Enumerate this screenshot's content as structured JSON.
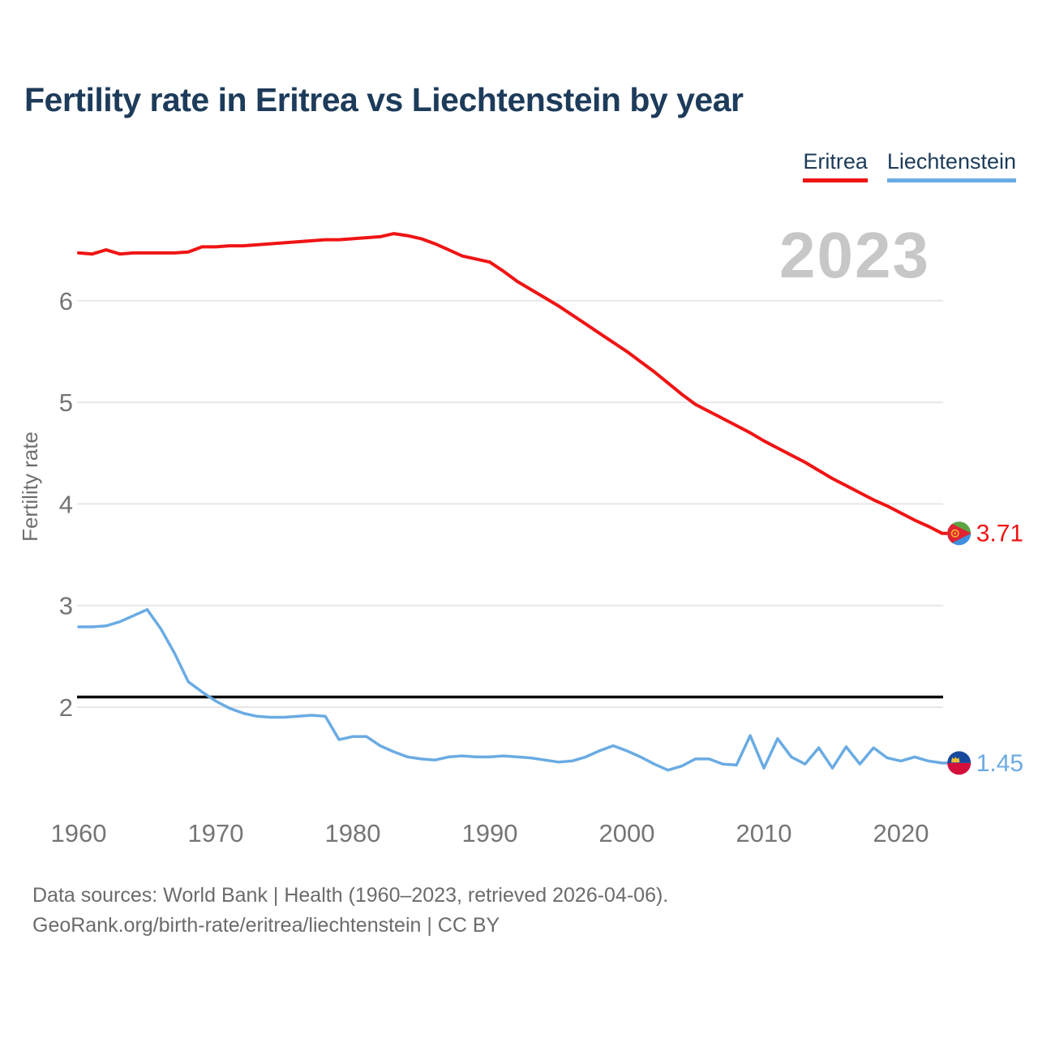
{
  "title": "Fertility rate in Eritrea vs Liechtenstein by year",
  "legend": {
    "eritrea_label": "Eritrea",
    "liechtenstein_label": "Liechtenstein"
  },
  "watermark": "2023",
  "end_labels": {
    "eritrea": "3.71",
    "liechtenstein": "1.45"
  },
  "footer": {
    "line1": "Data sources: World Bank | Health (1960–2023, retrieved 2026-04-06).",
    "line2": "GeoRank.org/birth-rate/eritrea/liechtenstein | CC BY"
  },
  "colors": {
    "eritrea": "#f01414",
    "liechtenstein": "#6aabe3",
    "title_text": "#1d3b5a",
    "tick_text": "#757575",
    "watermark_text": "#c7c7c7",
    "gridline": "#e7e7e7",
    "reference_line": "#0a0a0a"
  },
  "chart_data": {
    "type": "line",
    "title": "Fertility rate in Eritrea vs Liechtenstein by year",
    "xlabel": "",
    "ylabel": "Fertility rate",
    "legend_position": "top-right",
    "grid": "horizontal-only",
    "xlim": [
      1960,
      2023
    ],
    "ylim": [
      1.2,
      6.9
    ],
    "yticks": [
      2,
      3,
      4,
      5,
      6
    ],
    "xticks": [
      1960,
      1970,
      1980,
      1990,
      2000,
      2010,
      2020
    ],
    "reference_line": {
      "value": 2.1,
      "color": "#0a0a0a"
    },
    "x": [
      1960,
      1961,
      1962,
      1963,
      1964,
      1965,
      1966,
      1967,
      1968,
      1969,
      1970,
      1971,
      1972,
      1973,
      1974,
      1975,
      1976,
      1977,
      1978,
      1979,
      1980,
      1981,
      1982,
      1983,
      1984,
      1985,
      1986,
      1987,
      1988,
      1989,
      1990,
      1991,
      1992,
      1993,
      1994,
      1995,
      1996,
      1997,
      1998,
      1999,
      2000,
      2001,
      2002,
      2003,
      2004,
      2005,
      2006,
      2007,
      2008,
      2009,
      2010,
      2011,
      2012,
      2013,
      2014,
      2015,
      2016,
      2017,
      2018,
      2019,
      2020,
      2021,
      2022,
      2023
    ],
    "series": [
      {
        "name": "Eritrea",
        "color": "#f01414",
        "end_year": 2023,
        "end_value": 3.71,
        "values": [
          6.47,
          6.46,
          6.5,
          6.46,
          6.47,
          6.47,
          6.47,
          6.47,
          6.48,
          6.53,
          6.53,
          6.54,
          6.54,
          6.55,
          6.56,
          6.57,
          6.58,
          6.59,
          6.6,
          6.6,
          6.61,
          6.62,
          6.63,
          6.66,
          6.64,
          6.61,
          6.56,
          6.5,
          6.44,
          6.41,
          6.38,
          6.29,
          6.19,
          6.11,
          6.03,
          5.95,
          5.86,
          5.77,
          5.68,
          5.59,
          5.5,
          5.4,
          5.3,
          5.19,
          5.08,
          4.98,
          4.91,
          4.84,
          4.77,
          4.7,
          4.62,
          4.55,
          4.48,
          4.41,
          4.33,
          4.25,
          4.18,
          4.11,
          4.04,
          3.98,
          3.91,
          3.84,
          3.78,
          3.71
        ]
      },
      {
        "name": "Liechtenstein",
        "color": "#6aabe3",
        "end_year": 2023,
        "end_value": 1.45,
        "values": [
          2.79,
          2.79,
          2.8,
          2.84,
          2.9,
          2.96,
          2.77,
          2.53,
          2.25,
          2.15,
          2.06,
          1.99,
          1.94,
          1.91,
          1.9,
          1.9,
          1.91,
          1.92,
          1.91,
          1.68,
          1.71,
          1.71,
          1.62,
          1.56,
          1.51,
          1.49,
          1.48,
          1.51,
          1.52,
          1.51,
          1.51,
          1.52,
          1.51,
          1.5,
          1.48,
          1.46,
          1.47,
          1.51,
          1.57,
          1.62,
          1.57,
          1.51,
          1.44,
          1.38,
          1.42,
          1.49,
          1.49,
          1.44,
          1.43,
          1.72,
          1.4,
          1.69,
          1.51,
          1.44,
          1.6,
          1.4,
          1.61,
          1.44,
          1.6,
          1.5,
          1.47,
          1.51,
          1.47,
          1.45
        ]
      }
    ]
  }
}
